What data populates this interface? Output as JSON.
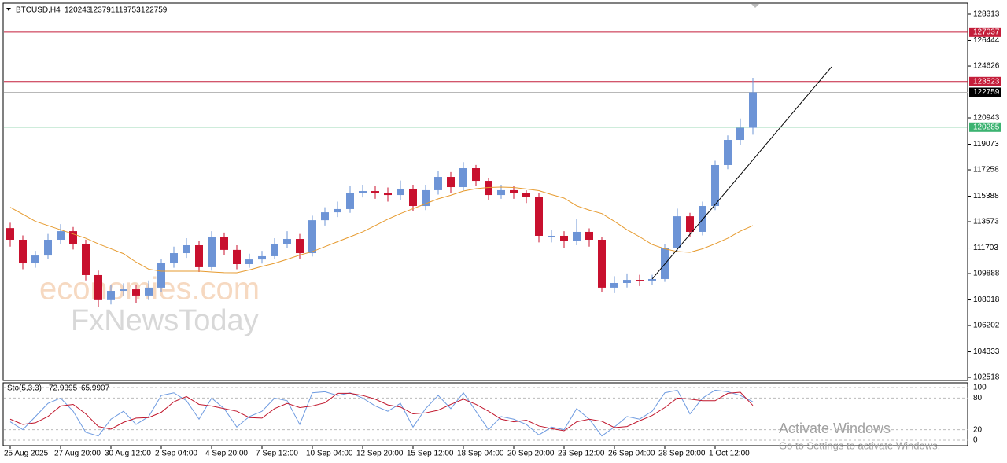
{
  "chart_data": {
    "type": "candlestick",
    "symbol": "BTCUSD,H4",
    "colors": {
      "up": "#6d94d6",
      "down": "#c8102e"
    },
    "ylim": [
      102297,
      129039
    ],
    "yticks": [
      128313,
      126444,
      124626,
      120943,
      119073,
      117258,
      115388,
      113573,
      111703,
      109888,
      108018,
      106202,
      104333,
      102518
    ],
    "xlim": [
      0,
      76
    ],
    "xticks": [
      {
        "value": 0,
        "label": "25 Aug 2025"
      },
      {
        "value": 4,
        "label": "27 Aug 20:00"
      },
      {
        "value": 8,
        "label": "30 Aug 12:00"
      },
      {
        "value": 12,
        "label": "2 Sep 04:00"
      },
      {
        "value": 16,
        "label": "4 Sep 20:00"
      },
      {
        "value": 20,
        "label": "7 Sep 12:00"
      },
      {
        "value": 24,
        "label": "10 Sep 04:00"
      },
      {
        "value": 28,
        "label": "12 Sep 20:00"
      },
      {
        "value": 32,
        "label": "15 Sep 12:00"
      },
      {
        "value": 36,
        "label": "18 Sep 04:00"
      },
      {
        "value": 40,
        "label": "20 Sep 20:00"
      },
      {
        "value": 44,
        "label": "23 Sep 12:00"
      },
      {
        "value": 48,
        "label": "26 Sep 04:00"
      },
      {
        "value": 52,
        "label": "28 Sep 20:00"
      },
      {
        "value": 56,
        "label": "1 Oct 12:00"
      }
    ],
    "open": [
      113120,
      112290,
      110615,
      111170,
      112290,
      112900,
      112010,
      109780,
      108000,
      108660,
      108770,
      108330,
      108890,
      110615,
      111340,
      111900,
      110340,
      112460,
      111570,
      110560,
      110890,
      111120,
      112010,
      112345,
      111340,
      113680,
      114240,
      114470,
      115640,
      115750,
      115640,
      115470,
      115920,
      114690,
      115810,
      116755,
      116030,
      117370,
      116475,
      115470,
      115810,
      115585,
      115360,
      112570,
      112570,
      112235,
      112850,
      112290,
      108890,
      109220,
      109440,
      109390,
      109500,
      111730,
      113960,
      112850,
      114690,
      117595,
      119380,
      120243
    ],
    "high": [
      113500,
      112600,
      111500,
      112700,
      113400,
      113200,
      112300,
      110100,
      109100,
      109200,
      109100,
      109400,
      110900,
      111800,
      112400,
      112200,
      112900,
      112800,
      111900,
      111300,
      111500,
      112400,
      112900,
      112700,
      114000,
      114600,
      115000,
      116100,
      116200,
      116100,
      116000,
      116500,
      116200,
      116200,
      117200,
      117100,
      117800,
      117600,
      116700,
      116200,
      116100,
      115800,
      115600,
      113000,
      112900,
      113800,
      113100,
      112500,
      109700,
      109900,
      109800,
      109800,
      112000,
      114500,
      114200,
      115000,
      117900,
      119700,
      120900,
      123791
    ],
    "low": [
      111800,
      110200,
      110300,
      110900,
      112000,
      111600,
      109400,
      107500,
      107700,
      108300,
      107800,
      108000,
      108600,
      110300,
      111000,
      110000,
      110100,
      111200,
      110200,
      110300,
      110600,
      110900,
      111700,
      110900,
      111100,
      113300,
      113900,
      114200,
      115300,
      115200,
      115000,
      115100,
      114300,
      114400,
      115500,
      115600,
      115800,
      116100,
      115100,
      115200,
      115200,
      114900,
      112100,
      112100,
      111700,
      111900,
      111800,
      108600,
      108500,
      108900,
      109000,
      109100,
      109300,
      111500,
      112500,
      112600,
      114400,
      117300,
      119000,
      119753
    ],
    "close": [
      112290,
      110615,
      111170,
      112290,
      112900,
      112010,
      109780,
      108000,
      108660,
      108770,
      108330,
      108890,
      110615,
      111340,
      111900,
      110340,
      112460,
      111570,
      110560,
      110890,
      111120,
      112010,
      112345,
      111340,
      113680,
      114240,
      114470,
      115640,
      115750,
      115640,
      115470,
      115920,
      114690,
      115810,
      116755,
      116030,
      117370,
      116475,
      115470,
      115810,
      115585,
      115360,
      112570,
      112570,
      112235,
      112850,
      112290,
      108890,
      109220,
      109440,
      109390,
      109500,
      111730,
      113960,
      112850,
      114690,
      117595,
      119380,
      120243,
      122759
    ],
    "overlay": {
      "type": "line",
      "color": "#e69a2e",
      "values": [
        114600,
        114100,
        113600,
        113300,
        113000,
        112700,
        112400,
        112000,
        111650,
        111300,
        110700,
        110200,
        110060,
        110060,
        110060,
        110060,
        110000,
        109950,
        109945,
        110150,
        110400,
        110615,
        110900,
        111200,
        111450,
        111800,
        112150,
        112500,
        112850,
        113300,
        113750,
        114150,
        114500,
        114850,
        115200,
        115450,
        115750,
        115920,
        116000,
        116030,
        116000,
        115900,
        115780,
        115500,
        115250,
        114700,
        114400,
        114150,
        113600,
        113000,
        112500,
        111950,
        111650,
        111450,
        111400,
        111650,
        112000,
        112400,
        112900,
        113300
      ]
    },
    "hlines": [
      {
        "value": 127037,
        "color": "#c41e3a",
        "label_color": "#c41e3a"
      },
      {
        "value": 123523,
        "color": "#c41e3a",
        "label_color": "#c41e3a"
      },
      {
        "value": 122759,
        "color": "#b8b8b8",
        "label_color": "#000000"
      },
      {
        "value": 120285,
        "color": "#3cb371",
        "label_color": "#3cb371"
      }
    ],
    "trendline": {
      "x": [
        51,
        65.25
      ],
      "y": [
        109500,
        124572
      ],
      "color": "#000000"
    },
    "indicator": {
      "type": "line",
      "name": "Sto(5,3,3)",
      "ylim": [
        -10.4,
        109
      ],
      "yticks": [
        0,
        20,
        80,
        100
      ],
      "series": [
        {
          "color": "#6d9ae0",
          "values": [
            35,
            20,
            45,
            70,
            80,
            55,
            15,
            8,
            40,
            55,
            30,
            45,
            85,
            90,
            75,
            40,
            80,
            60,
            25,
            45,
            55,
            80,
            75,
            30,
            90,
            92,
            85,
            90,
            80,
            65,
            55,
            70,
            25,
            60,
            85,
            60,
            90,
            55,
            20,
            45,
            40,
            30,
            10,
            25,
            20,
            60,
            40,
            8,
            25,
            45,
            40,
            55,
            90,
            95,
            50,
            80,
            95,
            92,
            85,
            72.9395
          ]
        },
        {
          "color": "#c0162c",
          "values": [
            40,
            30,
            33,
            45,
            65,
            68,
            50,
            26,
            21,
            34,
            42,
            43,
            53,
            73,
            83,
            68,
            65,
            60,
            55,
            43,
            42,
            60,
            70,
            62,
            65,
            71,
            89,
            89,
            85,
            78,
            67,
            63,
            50,
            52,
            57,
            68,
            78,
            68,
            55,
            40,
            35,
            38,
            27,
            22,
            18,
            35,
            40,
            36,
            24,
            26,
            37,
            47,
            62,
            80,
            78,
            75,
            75,
            89,
            91,
            65.9907
          ]
        }
      ]
    },
    "watermarks": [
      "economies.com",
      "FxNewsToday"
    ],
    "notice": {
      "title": "Activate Windows",
      "text": "Go to Settings to activate Windows."
    }
  }
}
